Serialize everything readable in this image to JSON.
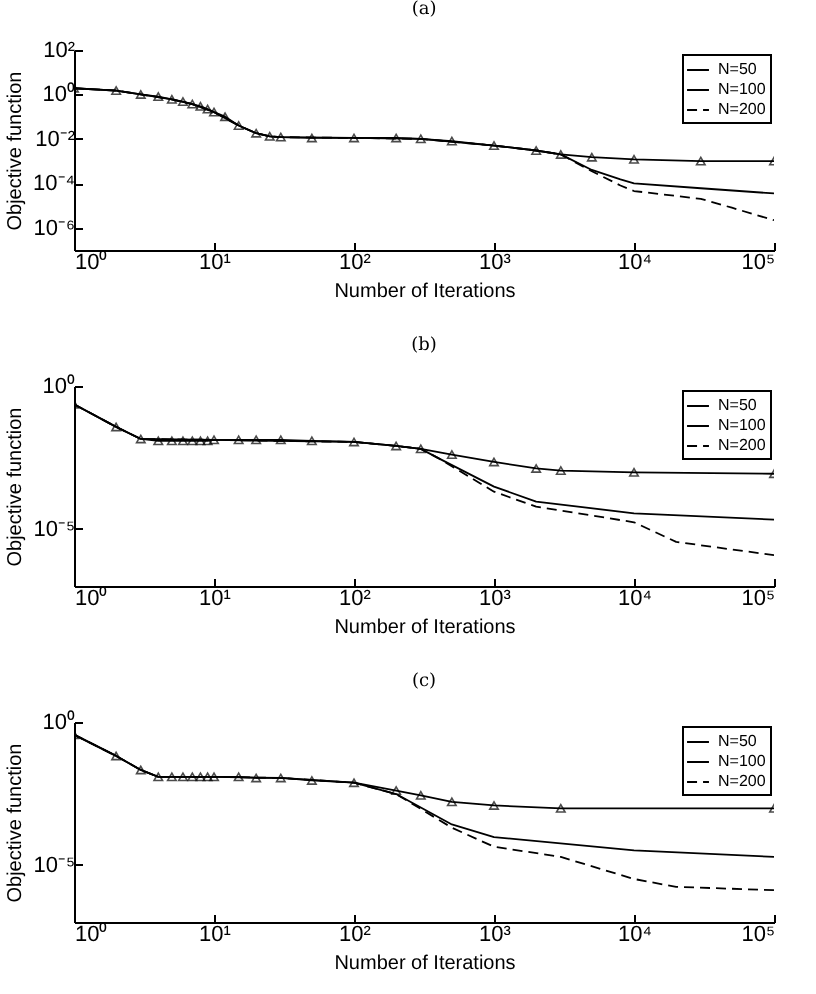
{
  "chart_data": [
    {
      "type": "line",
      "title": "(a)",
      "xlabel": "Number of Iterations",
      "ylabel": "Objective function",
      "log": "xy",
      "legend": "top right",
      "xlim": [
        1,
        100000
      ],
      "xticks": [
        {
          "value": 1,
          "label": "10⁰"
        },
        {
          "value": 10,
          "label": "10¹"
        },
        {
          "value": 100,
          "label": "10²"
        },
        {
          "value": 1000,
          "label": "10³"
        },
        {
          "value": 10000,
          "label": "10⁴"
        },
        {
          "value": 100000,
          "label": "10⁵"
        }
      ],
      "ylim": [
        1e-07,
        100
      ],
      "yticks": [
        {
          "value": 1e-06,
          "label": "10⁻⁶"
        },
        {
          "value": 0.0001,
          "label": "10⁻⁴"
        },
        {
          "value": 0.01,
          "label": "10⁻²"
        },
        {
          "value": 1,
          "label": "10⁰"
        },
        {
          "value": 100,
          "label": "10²"
        }
      ],
      "series": [
        {
          "name": "N=50",
          "color": "#000000",
          "marker": "triangle",
          "line_style": "solid",
          "x": [
            1,
            2,
            3,
            4,
            5,
            6,
            7,
            8,
            9,
            10,
            12,
            15,
            20,
            25,
            30,
            50,
            100,
            200,
            300,
            500,
            1000,
            2000,
            3000,
            5000,
            10000,
            30000,
            100000
          ],
          "values": [
            1.9,
            1.5,
            1.0,
            0.8,
            0.6,
            0.48,
            0.37,
            0.29,
            0.22,
            0.16,
            0.1,
            0.04,
            0.018,
            0.013,
            0.012,
            0.011,
            0.011,
            0.011,
            0.01,
            0.008,
            0.005,
            0.003,
            0.002,
            0.0015,
            0.0012,
            0.001,
            0.001
          ]
        },
        {
          "name": "N=100",
          "color": "#000000",
          "line_style": "solid",
          "x": [
            1,
            2,
            3,
            5,
            7,
            10,
            15,
            20,
            25,
            30,
            100,
            300,
            1000,
            2000,
            3000,
            5000,
            8000,
            10000,
            30000,
            100000
          ],
          "values": [
            1.9,
            1.5,
            1.0,
            0.6,
            0.37,
            0.16,
            0.04,
            0.018,
            0.013,
            0.012,
            0.011,
            0.01,
            0.005,
            0.003,
            0.002,
            0.0004,
            0.00015,
            0.0001,
            6e-05,
            3.5e-05
          ]
        },
        {
          "name": "N=200",
          "color": "#000000",
          "line_style": "dashed",
          "x": [
            1,
            2,
            3,
            5,
            7,
            10,
            15,
            20,
            25,
            30,
            100,
            300,
            1000,
            2000,
            3000,
            5000,
            8000,
            10000,
            30000,
            50000,
            100000
          ],
          "values": [
            1.9,
            1.5,
            1.0,
            0.6,
            0.37,
            0.16,
            0.04,
            0.018,
            0.013,
            0.012,
            0.011,
            0.01,
            0.005,
            0.003,
            0.002,
            0.00035,
            8e-05,
            4.5e-05,
            2e-05,
            8e-06,
            2.2e-06
          ]
        }
      ]
    },
    {
      "type": "line",
      "title": "(b)",
      "xlabel": "Number of Iterations",
      "ylabel": "Objective function",
      "log": "xy",
      "legend": "top right",
      "xlim": [
        1,
        100000
      ],
      "xticks": [
        {
          "value": 1,
          "label": "10⁰"
        },
        {
          "value": 10,
          "label": "10¹"
        },
        {
          "value": 100,
          "label": "10²"
        },
        {
          "value": 1000,
          "label": "10³"
        },
        {
          "value": 10000,
          "label": "10⁴"
        },
        {
          "value": 100000,
          "label": "10⁵"
        }
      ],
      "ylim": [
        1e-07,
        1
      ],
      "yticks": [
        {
          "value": 1e-05,
          "label": "10⁻⁵"
        },
        {
          "value": 1,
          "label": "10⁰"
        }
      ],
      "series": [
        {
          "name": "N=50",
          "color": "#000000",
          "marker": "triangle",
          "line_style": "solid",
          "x": [
            1,
            2,
            3,
            4,
            5,
            6,
            7,
            8,
            9,
            10,
            15,
            20,
            30,
            50,
            100,
            200,
            300,
            500,
            1000,
            2000,
            3000,
            10000,
            100000
          ],
          "values": [
            0.23,
            0.037,
            0.014,
            0.012,
            0.012,
            0.012,
            0.012,
            0.012,
            0.012,
            0.013,
            0.013,
            0.013,
            0.013,
            0.012,
            0.011,
            0.008,
            0.0063,
            0.004,
            0.0022,
            0.0013,
            0.0011,
            0.00095,
            0.00085
          ]
        },
        {
          "name": "N=100",
          "color": "#000000",
          "line_style": "solid",
          "x": [
            1,
            2,
            3,
            10,
            100,
            200,
            300,
            400,
            1000,
            2000,
            10000,
            100000
          ],
          "values": [
            0.23,
            0.037,
            0.014,
            0.013,
            0.011,
            0.008,
            0.0063,
            0.003,
            0.0003,
            9e-05,
            3.5e-05,
            2.1e-05
          ]
        },
        {
          "name": "N=200",
          "color": "#000000",
          "line_style": "dashed",
          "x": [
            1,
            2,
            3,
            10,
            100,
            200,
            300,
            400,
            1000,
            2000,
            10000,
            20000,
            100000
          ],
          "values": [
            0.23,
            0.037,
            0.014,
            0.013,
            0.011,
            0.008,
            0.0063,
            0.003,
            0.0002,
            6e-05,
            1.7e-05,
            3.5e-06,
            1.2e-06
          ]
        }
      ]
    },
    {
      "type": "line",
      "title": "(c)",
      "xlabel": "Number of Iterations",
      "ylabel": "Objective function",
      "log": "xy",
      "legend": "top right",
      "xlim": [
        1,
        100000
      ],
      "xticks": [
        {
          "value": 1,
          "label": "10⁰"
        },
        {
          "value": 10,
          "label": "10¹"
        },
        {
          "value": 100,
          "label": "10²"
        },
        {
          "value": 1000,
          "label": "10³"
        },
        {
          "value": 10000,
          "label": "10⁴"
        },
        {
          "value": 100000,
          "label": "10⁵"
        }
      ],
      "ylim": [
        1e-07,
        1
      ],
      "yticks": [
        {
          "value": 1e-05,
          "label": "10⁻⁵"
        },
        {
          "value": 1,
          "label": "10⁰"
        }
      ],
      "series": [
        {
          "name": "N=50",
          "color": "#000000",
          "marker": "triangle",
          "line_style": "solid",
          "x": [
            1,
            2,
            3,
            4,
            5,
            6,
            7,
            8,
            9,
            10,
            15,
            20,
            30,
            50,
            100,
            200,
            300,
            500,
            1000,
            3000,
            100000
          ],
          "values": [
            0.36,
            0.065,
            0.021,
            0.012,
            0.012,
            0.012,
            0.012,
            0.012,
            0.012,
            0.012,
            0.012,
            0.011,
            0.011,
            0.009,
            0.0075,
            0.004,
            0.0027,
            0.0016,
            0.0012,
            0.00095,
            0.00095
          ]
        },
        {
          "name": "N=100",
          "color": "#000000",
          "line_style": "solid",
          "x": [
            1,
            2,
            3,
            4,
            10,
            30,
            100,
            200,
            500,
            1000,
            10000,
            100000
          ],
          "values": [
            0.36,
            0.065,
            0.021,
            0.012,
            0.012,
            0.011,
            0.0075,
            0.003,
            0.00026,
            9.4e-05,
            3.2e-05,
            1.9e-05
          ]
        },
        {
          "name": "N=200",
          "color": "#000000",
          "line_style": "dashed",
          "x": [
            1,
            2,
            3,
            4,
            10,
            30,
            100,
            200,
            500,
            1000,
            3000,
            10000,
            20000,
            100000
          ],
          "values": [
            0.36,
            0.065,
            0.021,
            0.012,
            0.012,
            0.011,
            0.0075,
            0.003,
            0.0002,
            4.3e-05,
            1.9e-05,
            3.2e-06,
            1.7e-06,
            1.3e-06
          ]
        }
      ]
    }
  ]
}
